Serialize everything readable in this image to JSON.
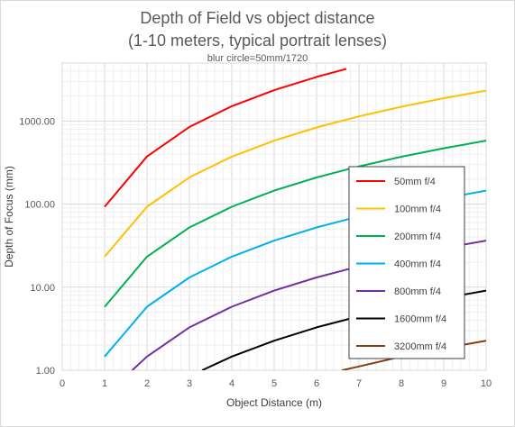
{
  "chart_data": {
    "type": "line",
    "title": "Depth of Field vs object distance",
    "subtitle": "(1-10 meters, typical portrait lenses)",
    "note": "blur circle=50mm/1720",
    "xlabel": "Object Distance (m)",
    "ylabel": "Depth of Focus (mm)",
    "xlim": [
      0,
      10
    ],
    "ylim": [
      1,
      5000
    ],
    "yscale": "log",
    "grid": true,
    "legend_position": "right",
    "x_ticks": [
      "0",
      "1",
      "2",
      "3",
      "4",
      "5",
      "6",
      "7",
      "8",
      "9",
      "10"
    ],
    "y_ticks": [
      {
        "value": 1,
        "label": "1.00"
      },
      {
        "value": 10,
        "label": "10.00"
      },
      {
        "value": 100,
        "label": "100.00"
      },
      {
        "value": 1000,
        "label": "1000.00"
      }
    ],
    "series": [
      {
        "name": "50mm f/4",
        "color": "#ff0000",
        "x": [
          1,
          2,
          3,
          4,
          5,
          6,
          6.7
        ],
        "y": [
          93,
          375,
          850,
          1510,
          2360,
          3400,
          4250
        ]
      },
      {
        "name": "100mm f/4",
        "color": "#ffc000",
        "x": [
          1,
          2,
          3,
          4,
          5,
          6,
          7,
          8,
          9,
          10
        ],
        "y": [
          23.3,
          93,
          210,
          373,
          582,
          838,
          1141,
          1490,
          1886,
          2330
        ]
      },
      {
        "name": "200mm f/4",
        "color": "#00b050",
        "x": [
          1,
          2,
          3,
          4,
          5,
          6,
          7,
          8,
          9,
          10
        ],
        "y": [
          5.8,
          23.3,
          52.4,
          93,
          145.5,
          209.5,
          285,
          372,
          471,
          582
        ]
      },
      {
        "name": "400mm f/4",
        "color": "#00b0f0",
        "x": [
          1,
          2,
          3,
          4,
          5,
          6,
          7,
          8,
          9,
          10
        ],
        "y": [
          1.46,
          5.82,
          13.1,
          23.3,
          36.4,
          52.4,
          71.3,
          93.1,
          117.8,
          145.5
        ]
      },
      {
        "name": "800mm f/4",
        "color": "#7030a0",
        "x": [
          1.65,
          2,
          3,
          4,
          5,
          6,
          7,
          8,
          9,
          10
        ],
        "y": [
          1.0,
          1.46,
          3.28,
          5.82,
          9.1,
          13.1,
          17.8,
          23.3,
          29.5,
          36.4
        ]
      },
      {
        "name": "1600mm f/4",
        "color": "#000000",
        "x": [
          3.3,
          4,
          5,
          6,
          7,
          8,
          9,
          10
        ],
        "y": [
          1.0,
          1.46,
          2.27,
          3.28,
          4.46,
          5.82,
          7.37,
          9.1
        ]
      },
      {
        "name": "3200mm f/4",
        "color": "#843c0c",
        "x": [
          6.6,
          7,
          8,
          9,
          10
        ],
        "y": [
          1.0,
          1.11,
          1.46,
          1.84,
          2.27
        ]
      }
    ]
  }
}
